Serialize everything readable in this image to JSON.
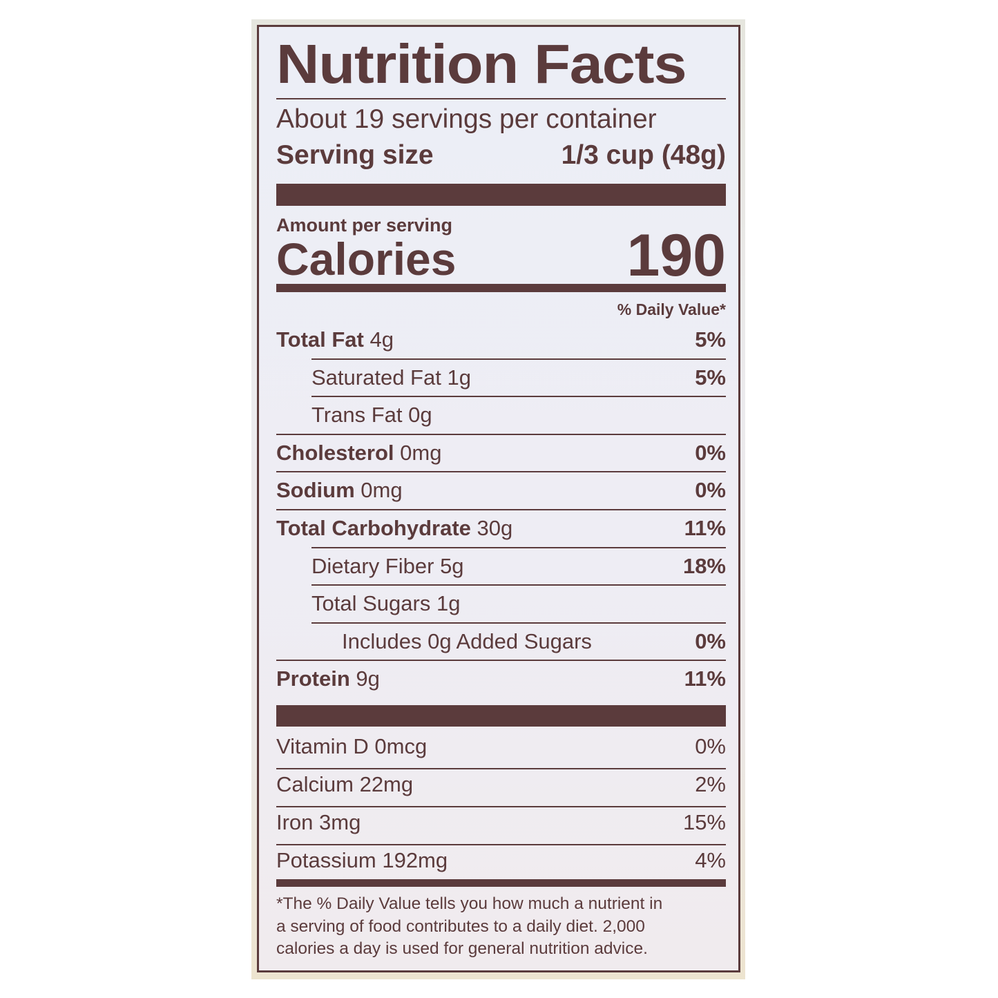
{
  "title": "Nutrition Facts",
  "servings_per_container": "About 19 servings per container",
  "serving_size": {
    "label": "Serving size",
    "value": "1/3 cup (48g)"
  },
  "amount_per_serving": "Amount per serving",
  "calories": {
    "label": "Calories",
    "value": "190"
  },
  "daily_value_header": "% Daily Value*",
  "nutrients": [
    {
      "name": "Total Fat",
      "amount": "4g",
      "dv": "5%",
      "bold": true,
      "indent": 0
    },
    {
      "name": "Saturated Fat",
      "amount": "1g",
      "dv": "5%",
      "bold": false,
      "indent": 1
    },
    {
      "name": "Trans Fat",
      "amount": "0g",
      "dv": "",
      "bold": false,
      "indent": 1
    },
    {
      "name": "Cholesterol",
      "amount": "0mg",
      "dv": "0%",
      "bold": true,
      "indent": 0
    },
    {
      "name": "Sodium",
      "amount": "0mg",
      "dv": "0%",
      "bold": true,
      "indent": 0
    },
    {
      "name": "Total Carbohydrate",
      "amount": "30g",
      "dv": "11%",
      "bold": true,
      "indent": 0
    },
    {
      "name": "Dietary Fiber",
      "amount": "5g",
      "dv": "18%",
      "bold": false,
      "indent": 1
    },
    {
      "name": "Total Sugars",
      "amount": "1g",
      "dv": "",
      "bold": false,
      "indent": 1
    },
    {
      "name": "Includes 0g Added Sugars",
      "amount": "",
      "dv": "0%",
      "bold": false,
      "indent": 2
    },
    {
      "name": "Protein",
      "amount": "9g",
      "dv": "11%",
      "bold": true,
      "indent": 0
    }
  ],
  "vitamins": [
    {
      "name": "Vitamin D 0mcg",
      "dv": "0%"
    },
    {
      "name": "Calcium 22mg",
      "dv": "2%"
    },
    {
      "name": "Iron 3mg",
      "dv": "15%"
    },
    {
      "name": "Potassium 192mg",
      "dv": "4%"
    }
  ],
  "footnote": [
    "*The % Daily Value tells you how much a nutrient in",
    "a serving of food contributes to a daily diet. 2,000",
    "calories a day is used for general nutrition advice."
  ],
  "colors": {
    "ink": "#5b3b3c",
    "label_bg": "#eceef6"
  }
}
